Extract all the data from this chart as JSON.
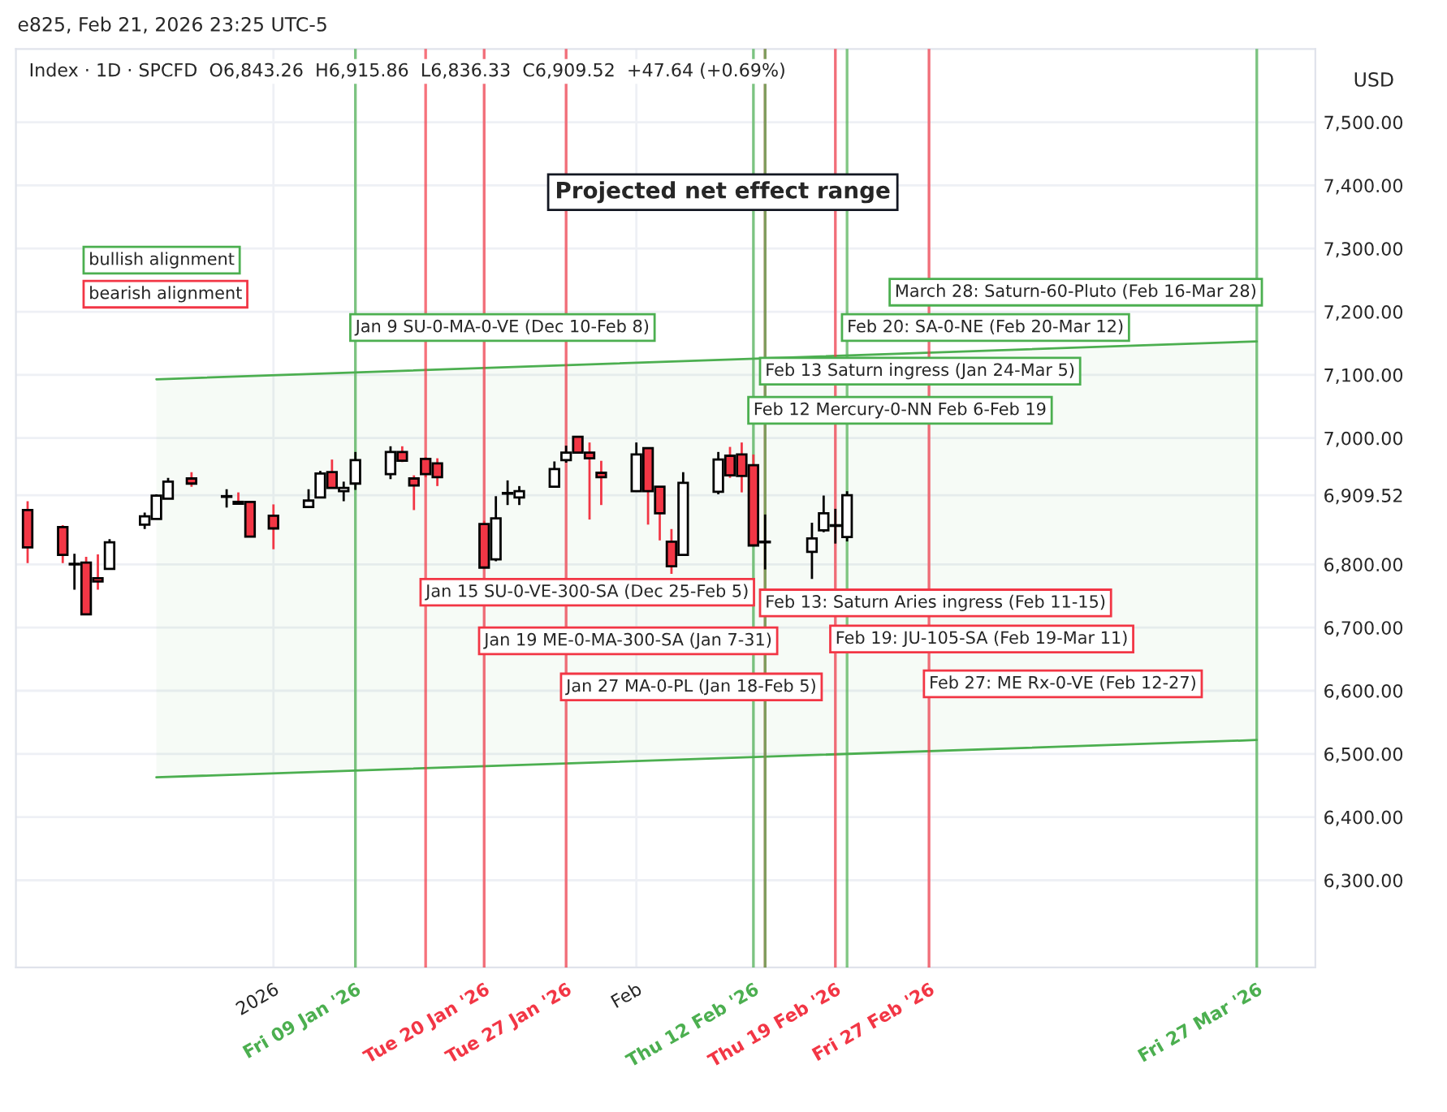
{
  "chart_data": {
    "type": "candlestick",
    "title": "e825, Feb 21, 2026 23:25 UTC-5",
    "subtitle": "Index · 1D · SPCFD  O6,843.26  H6,915.86  L6,836.33  C6,909.52  +47.64 (+0.69%)",
    "ylabel": "USD",
    "x": [
      "2025-12-12",
      "2025-12-15",
      "2025-12-16",
      "2025-12-17",
      "2025-12-18",
      "2025-12-19",
      "2025-12-22",
      "2025-12-23",
      "2025-12-24",
      "2025-12-26",
      "2025-12-29",
      "2025-12-30",
      "2025-12-31",
      "2026-01-02",
      "2026-01-05",
      "2026-01-06",
      "2026-01-07",
      "2026-01-08",
      "2026-01-09",
      "2026-01-12",
      "2026-01-13",
      "2026-01-14",
      "2026-01-15",
      "2026-01-16",
      "2026-01-20",
      "2026-01-21",
      "2026-01-22",
      "2026-01-23",
      "2026-01-26",
      "2026-01-27",
      "2026-01-28",
      "2026-01-29",
      "2026-01-30",
      "2026-02-02",
      "2026-02-03",
      "2026-02-04",
      "2026-02-05",
      "2026-02-06",
      "2026-02-09",
      "2026-02-10",
      "2026-02-11",
      "2026-02-12",
      "2026-02-13",
      "2026-02-17",
      "2026-02-18",
      "2026-02-19",
      "2026-02-20"
    ],
    "ohlc": [
      [
        6886,
        6900,
        6802,
        6827
      ],
      [
        6859,
        6862,
        6802,
        6815
      ],
      [
        6800,
        6817,
        6760,
        6801
      ],
      [
        6803,
        6812,
        6721,
        6721
      ],
      [
        6778,
        6816,
        6760,
        6773
      ],
      [
        6793,
        6840,
        6793,
        6835
      ],
      [
        6863,
        6882,
        6856,
        6876
      ],
      [
        6872,
        6911,
        6872,
        6909
      ],
      [
        6904,
        6937,
        6904,
        6931
      ],
      [
        6936,
        6946,
        6923,
        6928
      ],
      [
        6907,
        6919,
        6890,
        6908
      ],
      [
        6899,
        6914,
        6896,
        6896
      ],
      [
        6899,
        6900,
        6844,
        6844
      ],
      [
        6877,
        6895,
        6824,
        6857
      ],
      [
        6891,
        6919,
        6891,
        6901
      ],
      [
        6906,
        6948,
        6906,
        6944
      ],
      [
        6946,
        6966,
        6921,
        6921
      ],
      [
        6916,
        6931,
        6900,
        6921
      ],
      [
        6928,
        6978,
        6918,
        6965
      ],
      [
        6943,
        6987,
        6935,
        6978
      ],
      [
        6978,
        6987,
        6962,
        6964
      ],
      [
        6936,
        6941,
        6886,
        6925
      ],
      [
        6967,
        6970,
        6938,
        6943
      ],
      [
        6960,
        6968,
        6924,
        6938
      ],
      [
        6864,
        6869,
        6795,
        6795
      ],
      [
        6808,
        6908,
        6805,
        6873
      ],
      [
        6912,
        6933,
        6894,
        6913
      ],
      [
        6906,
        6924,
        6894,
        6916
      ],
      [
        6923,
        6963,
        6923,
        6951
      ],
      [
        6965,
        6988,
        6961,
        6977
      ],
      [
        7002,
        7002,
        6977,
        6977
      ],
      [
        6977,
        6993,
        6871,
        6968
      ],
      [
        6945,
        6964,
        6894,
        6938
      ],
      [
        6916,
        6993,
        6916,
        6974
      ],
      [
        6984,
        6984,
        6863,
        6916
      ],
      [
        6923,
        6923,
        6838,
        6881
      ],
      [
        6836,
        6856,
        6785,
        6797
      ],
      [
        6815,
        6946,
        6815,
        6929
      ],
      [
        6915,
        6978,
        6911,
        6966
      ],
      [
        6972,
        6986,
        6937,
        6941
      ],
      [
        6974,
        6993,
        6914,
        6940
      ],
      [
        6957,
        6974,
        6830,
        6830
      ],
      [
        6835,
        6879,
        6792,
        6836
      ],
      [
        6820,
        6866,
        6777,
        6841
      ],
      [
        6854,
        6909,
        6851,
        6881
      ],
      [
        6861,
        6888,
        6833,
        6862
      ],
      [
        6843.26,
        6915.86,
        6836.33,
        6909.52
      ]
    ],
    "series": [
      {
        "type": "line",
        "x": [
          "2025-12-23",
          "2026-03-27"
        ],
        "values": [
          7093,
          7153
        ],
        "lower": [
          6463,
          6522
        ],
        "upper": [
          7093,
          7153
        ],
        "color": "#4caf50"
      },
      {
        "type": "line",
        "x": [
          "2025-12-23",
          "2026-03-27"
        ],
        "values": [
          6463,
          6522
        ],
        "color": "#4caf50"
      }
    ],
    "xlim": [
      "2025-12-11",
      "2026-04-01"
    ],
    "xticks": [
      {
        "value": "2026-01-02",
        "label": "2026"
      },
      {
        "value": "2026-01-09",
        "label": "Fri 09 Jan '26"
      },
      {
        "value": "2026-01-20",
        "label": "Tue 20 Jan '26"
      },
      {
        "value": "2026-01-27",
        "label": "Tue 27 Jan '26"
      },
      {
        "value": "2026-02-02",
        "label": "Feb"
      },
      {
        "value": "2026-02-12",
        "label": "Thu 12 Feb '26"
      },
      {
        "value": "2026-02-19",
        "label": "Thu 19 Feb '26"
      },
      {
        "value": "2026-02-27",
        "label": "Fri 27 Feb '26"
      },
      {
        "value": "2026-03-27",
        "label": "Fri 27 Mar '26"
      }
    ],
    "ylim": [
      6162,
      7616
    ],
    "yticks": [
      {
        "value": 6300,
        "label": "6,300.00"
      },
      {
        "value": 6400,
        "label": "6,400.00"
      },
      {
        "value": 6500,
        "label": "6,500.00"
      },
      {
        "value": 6600,
        "label": "6,600.00"
      },
      {
        "value": 6700,
        "label": "6,700.00"
      },
      {
        "value": 6800,
        "label": "6,800.00"
      },
      {
        "value": 6909.52,
        "label": "6,909.52"
      },
      {
        "value": 7000,
        "label": "7,000.00"
      },
      {
        "value": 7100,
        "label": "7,100.00"
      },
      {
        "value": 7200,
        "label": "7,200.00"
      },
      {
        "value": 7300,
        "label": "7,300.00"
      },
      {
        "value": 7400,
        "label": "7,400.00"
      },
      {
        "value": 7500,
        "label": "7,500.00"
      }
    ],
    "ref_lines": [
      {
        "axis": "x",
        "value": "2026-01-09",
        "color": "#4caf50"
      },
      {
        "axis": "x",
        "value": "2026-01-15",
        "color": "#f23645"
      },
      {
        "axis": "x",
        "value": "2026-01-20",
        "color": "#f23645"
      },
      {
        "axis": "x",
        "value": "2026-01-27",
        "color": "#f23645"
      },
      {
        "axis": "x",
        "value": "2026-02-12",
        "color": "#4caf50"
      },
      {
        "axis": "x",
        "value": "2026-02-13",
        "color": "#f23645"
      },
      {
        "axis": "x",
        "value": "2026-02-13",
        "color": "#4caf50"
      },
      {
        "axis": "x",
        "value": "2026-02-19",
        "color": "#f23645"
      },
      {
        "axis": "x",
        "value": "2026-02-20",
        "color": "#4caf50"
      },
      {
        "axis": "x",
        "value": "2026-02-27",
        "color": "#f23645"
      },
      {
        "axis": "x",
        "value": "2026-03-27",
        "color": "#4caf50"
      }
    ],
    "annotations": [
      {
        "text": "Jan 9 SU-0-MA-0-VE (Dec 10-Feb 8)",
        "x": "2026-01-09",
        "y": 7175
      },
      {
        "text": "Jan 15 SU-0-VE-300-SA (Dec 25-Feb 5)",
        "x": "2026-01-15",
        "y": 6756
      },
      {
        "text": "Jan 19 ME-0-MA-300-SA (Jan 7-31)",
        "x": "2026-01-20",
        "y": 6679
      },
      {
        "text": "Jan 27 MA-0-PL (Jan 18-Feb 5)",
        "x": "2026-01-27",
        "y": 6606
      },
      {
        "text": "Feb 12 Mercury-0-NN Feb 6-Feb 19",
        "x": "2026-02-12",
        "y": 7044
      },
      {
        "text": "Feb 13: Saturn Aries ingress (Feb 11-15)",
        "x": "2026-02-13",
        "y": 6739
      },
      {
        "text": "Feb 13 Saturn ingress (Jan 24-Mar 5)",
        "x": "2026-02-13",
        "y": 7106
      },
      {
        "text": "Feb 19: JU-105-SA (Feb 19-Mar 11)",
        "x": "2026-02-19",
        "y": 6682
      },
      {
        "text": "Feb 20: SA-0-NE (Feb 20-Mar 12)",
        "x": "2026-02-20",
        "y": 7175
      },
      {
        "text": "Feb 27: ME Rx-0-VE (Feb 12-27)",
        "x": "2026-02-27",
        "y": 6611
      },
      {
        "text": "March 28: Saturn-60-Pluto (Feb 16-Mar 28)",
        "x": "2026-03-27",
        "y": 7231
      },
      "Projected net effect range",
      "bullish alignment",
      "bearish alignment"
    ],
    "grid": true
  }
}
